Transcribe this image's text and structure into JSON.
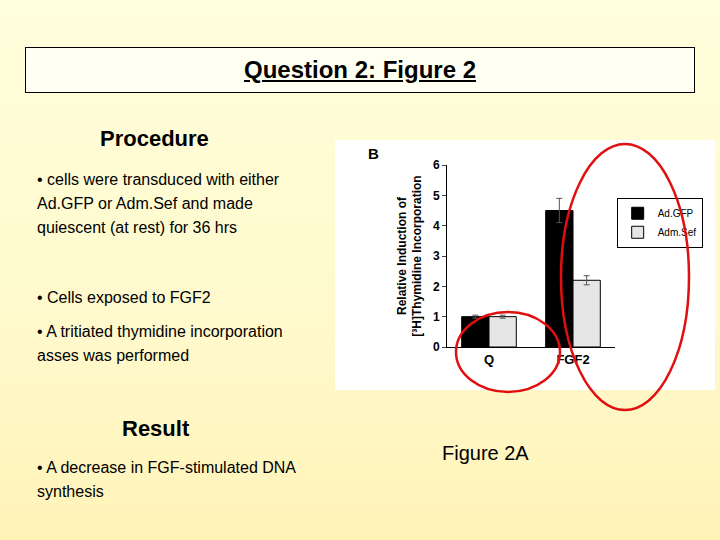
{
  "slide": {
    "title": "Question 2: Figure 2",
    "procedure_heading": "Procedure",
    "procedure": [
      "• cells were transduced with either Ad.GFP or Adm.Sef and made quiescent (at rest) for 36 hrs",
      "• Cells exposed to FGF2",
      "• A tritiated thymidine incorporation asses was performed"
    ],
    "result_heading": "Result",
    "result": [
      "• A decrease in FGF-stimulated DNA synthesis"
    ],
    "figure_label": "Figure 2A"
  },
  "chart_data": {
    "type": "bar",
    "panel_label": "B",
    "y_label": [
      "Relative Induction of",
      "[³H]Thymidine Incorporation"
    ],
    "categories": [
      "Q",
      "FGF2"
    ],
    "series": [
      {
        "name": "Ad.GFP",
        "color": "#000000",
        "values": [
          1,
          4.5
        ],
        "errors": [
          0.05,
          0.4
        ]
      },
      {
        "name": "Adm.Sef",
        "color": "#e6e6e6",
        "values": [
          1,
          2.2
        ],
        "errors": [
          0.05,
          0.15
        ]
      }
    ],
    "ylim": [
      0,
      6
    ],
    "yticks": [
      0,
      1,
      2,
      3,
      4,
      5,
      6
    ],
    "grid": false,
    "legend": "top right"
  }
}
